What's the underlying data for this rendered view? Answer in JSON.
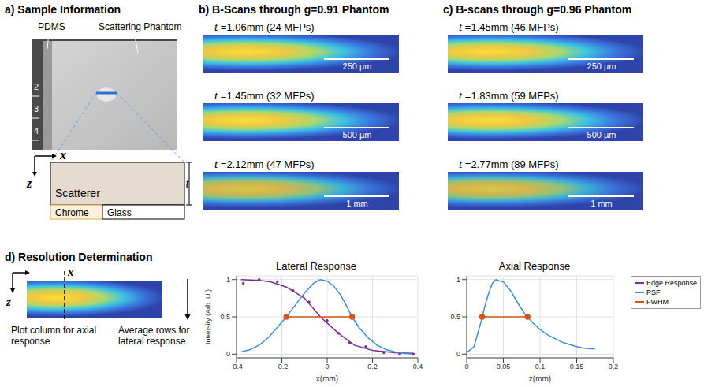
{
  "panels": {
    "a": {
      "title": "a) Sample Information",
      "photo_labels": [
        "PDMS",
        "Scattering Phantom"
      ],
      "ruler_marks": [
        "2",
        "3",
        "4"
      ],
      "schematic": {
        "x_axis": "x",
        "z_axis": "z",
        "thickness": "t",
        "layers": [
          "Scatterer",
          "Chrome",
          "Glass"
        ]
      }
    },
    "b": {
      "title": "b) B-Scans through g=0.91 Phantom",
      "scans": [
        {
          "symbol": "t",
          "text": "=1.06mm (24 MFPs)",
          "scale_bar": "250 µm"
        },
        {
          "symbol": "t",
          "text": "=1.45mm (32 MFPs)",
          "scale_bar": "500 µm"
        },
        {
          "symbol": "t",
          "text": "=2.12mm (47 MFPs)",
          "scale_bar": "1 mm"
        }
      ]
    },
    "c": {
      "title": "c) B-scans through g=0.96 Phantom",
      "scans": [
        {
          "symbol": "t",
          "text": "=1.45mm (46 MFPs)",
          "scale_bar": "250 µm"
        },
        {
          "symbol": "t",
          "text": "=1.83mm (59 MFPs)",
          "scale_bar": "500 µm"
        },
        {
          "symbol": "t",
          "text": "=2.77mm (89 MFPs)",
          "scale_bar": "1 mm"
        }
      ]
    },
    "d": {
      "title": "d) Resolution Determination",
      "schematic": {
        "x_axis": "x",
        "z_axis": "z",
        "column_note": "Plot column for axial response",
        "rows_note": "Average rows for lateral response"
      }
    }
  },
  "chart_data": [
    {
      "type": "line",
      "title": "Lateral Response",
      "x_label": "x(mm)",
      "y_label": "Intensity (Arb. U.)",
      "xlim": [
        -0.4,
        0.4
      ],
      "xticks": [
        -0.4,
        -0.2,
        0,
        0.2,
        0.4
      ],
      "ylim": [
        -0.05,
        1.05
      ],
      "yticks": [
        0,
        0.5,
        1
      ],
      "grid": true,
      "series": [
        {
          "name": "Edge Response",
          "color": "#7e2f8e",
          "x": [
            -0.38,
            -0.3,
            -0.25,
            -0.18,
            -0.1,
            -0.03,
            0.05,
            0.12,
            0.2,
            0.3,
            0.38
          ],
          "values": [
            1.0,
            0.99,
            0.97,
            0.9,
            0.75,
            0.5,
            0.28,
            0.12,
            0.05,
            0.02,
            0.01
          ],
          "points": {
            "x": [
              -0.37,
              -0.3,
              -0.22,
              -0.15,
              -0.08,
              0.0,
              0.05,
              0.1,
              0.17,
              0.25,
              0.32,
              0.38
            ],
            "values": [
              0.95,
              1.0,
              0.97,
              0.85,
              0.7,
              0.45,
              0.28,
              0.15,
              0.1,
              0.02,
              0.0,
              0.0
            ]
          }
        },
        {
          "name": "PSF",
          "color": "#3a8fd6",
          "x": [
            -0.38,
            -0.34,
            -0.3,
            -0.26,
            -0.22,
            -0.18,
            -0.14,
            -0.1,
            -0.06,
            -0.03,
            0.0,
            0.03,
            0.06,
            0.09,
            0.11,
            0.14,
            0.18,
            0.22,
            0.26,
            0.3,
            0.34,
            0.38
          ],
          "values": [
            0.03,
            0.06,
            0.12,
            0.22,
            0.36,
            0.5,
            0.66,
            0.82,
            0.95,
            1.0,
            0.98,
            0.91,
            0.79,
            0.62,
            0.5,
            0.36,
            0.22,
            0.12,
            0.06,
            0.03,
            0.01,
            0.0
          ]
        },
        {
          "name": "FWHM",
          "color": "#d95319",
          "marker": "circle",
          "x": [
            -0.18,
            0.11
          ],
          "values": [
            0.5,
            0.5
          ]
        }
      ]
    },
    {
      "type": "line",
      "title": "Axial Response",
      "x_label": "z(mm)",
      "xlim": [
        0,
        0.2
      ],
      "xticks": [
        0,
        0.05,
        0.1,
        0.15,
        0.2
      ],
      "ylim": [
        -0.05,
        1.05
      ],
      "yticks": [
        0,
        0.5,
        1
      ],
      "grid": true,
      "legend": "right",
      "series": [
        {
          "name": "PSF",
          "color": "#3a8fd6",
          "x": [
            0.0,
            0.01,
            0.02,
            0.025,
            0.03,
            0.035,
            0.04,
            0.045,
            0.05,
            0.06,
            0.07,
            0.08,
            0.09,
            0.1,
            0.11,
            0.12,
            0.13,
            0.14,
            0.15,
            0.16,
            0.175
          ],
          "values": [
            0.02,
            0.1,
            0.45,
            0.65,
            0.82,
            0.95,
            1.0,
            0.98,
            0.97,
            0.85,
            0.68,
            0.53,
            0.42,
            0.33,
            0.26,
            0.21,
            0.16,
            0.13,
            0.1,
            0.08,
            0.07
          ]
        },
        {
          "name": "FWHM",
          "color": "#d95319",
          "marker": "circle",
          "x": [
            0.021,
            0.083
          ],
          "values": [
            0.5,
            0.5
          ]
        }
      ]
    }
  ]
}
